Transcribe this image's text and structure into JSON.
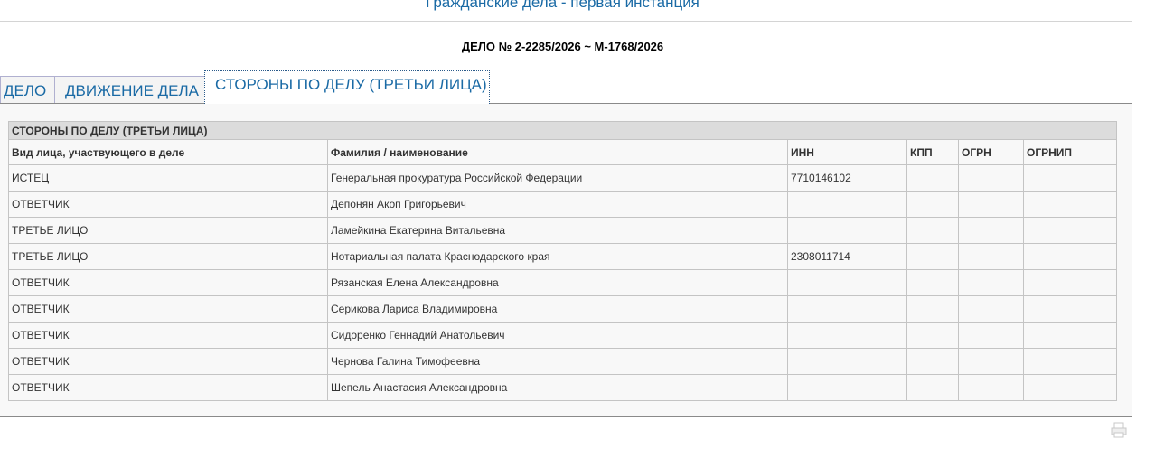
{
  "header": {
    "title": "Гражданские дела - первая инстанция",
    "case_number": "ДЕЛО № 2-2285/2026 ~ М-1768/2026"
  },
  "tabs": [
    {
      "label": "ДЕЛО",
      "active": false
    },
    {
      "label": "ДВИЖЕНИЕ ДЕЛА",
      "active": false
    },
    {
      "label": "СТОРОНЫ ПО ДЕЛУ (ТРЕТЬИ ЛИЦА)",
      "active": true
    }
  ],
  "table": {
    "caption": "СТОРОНЫ ПО ДЕЛУ (ТРЕТЬИ ЛИЦА)",
    "columns": [
      "Вид лица, участвующего в деле",
      "Фамилия / наименование",
      "ИНН",
      "КПП",
      "ОГРН",
      "ОГРНИП"
    ],
    "rows": [
      [
        "ИСТЕЦ",
        "Генеральная прокуратура Российской Федерации",
        "7710146102",
        "",
        "",
        ""
      ],
      [
        "ОТВЕТЧИК",
        "Депонян Акоп Григорьевич",
        "",
        "",
        "",
        ""
      ],
      [
        "ТРЕТЬЕ ЛИЦО",
        "Ламейкина Екатерина Витальевна",
        "",
        "",
        "",
        ""
      ],
      [
        "ТРЕТЬЕ ЛИЦО",
        "Нотариальная палата Краснодарского края",
        "2308011714",
        "",
        "",
        ""
      ],
      [
        "ОТВЕТЧИК",
        "Рязанская Елена Александровна",
        "",
        "",
        "",
        ""
      ],
      [
        "ОТВЕТЧИК",
        "Серикова Лариса Владимировна",
        "",
        "",
        "",
        ""
      ],
      [
        "ОТВЕТЧИК",
        "Сидоренко Геннадий Анатольевич",
        "",
        "",
        "",
        ""
      ],
      [
        "ОТВЕТЧИК",
        "Чернова Галина Тимофеевна",
        "",
        "",
        "",
        ""
      ],
      [
        "ОТВЕТЧИК",
        "Шепель Анастасия Александровна",
        "",
        "",
        "",
        ""
      ]
    ]
  },
  "icons": {
    "print": "printer-icon"
  }
}
